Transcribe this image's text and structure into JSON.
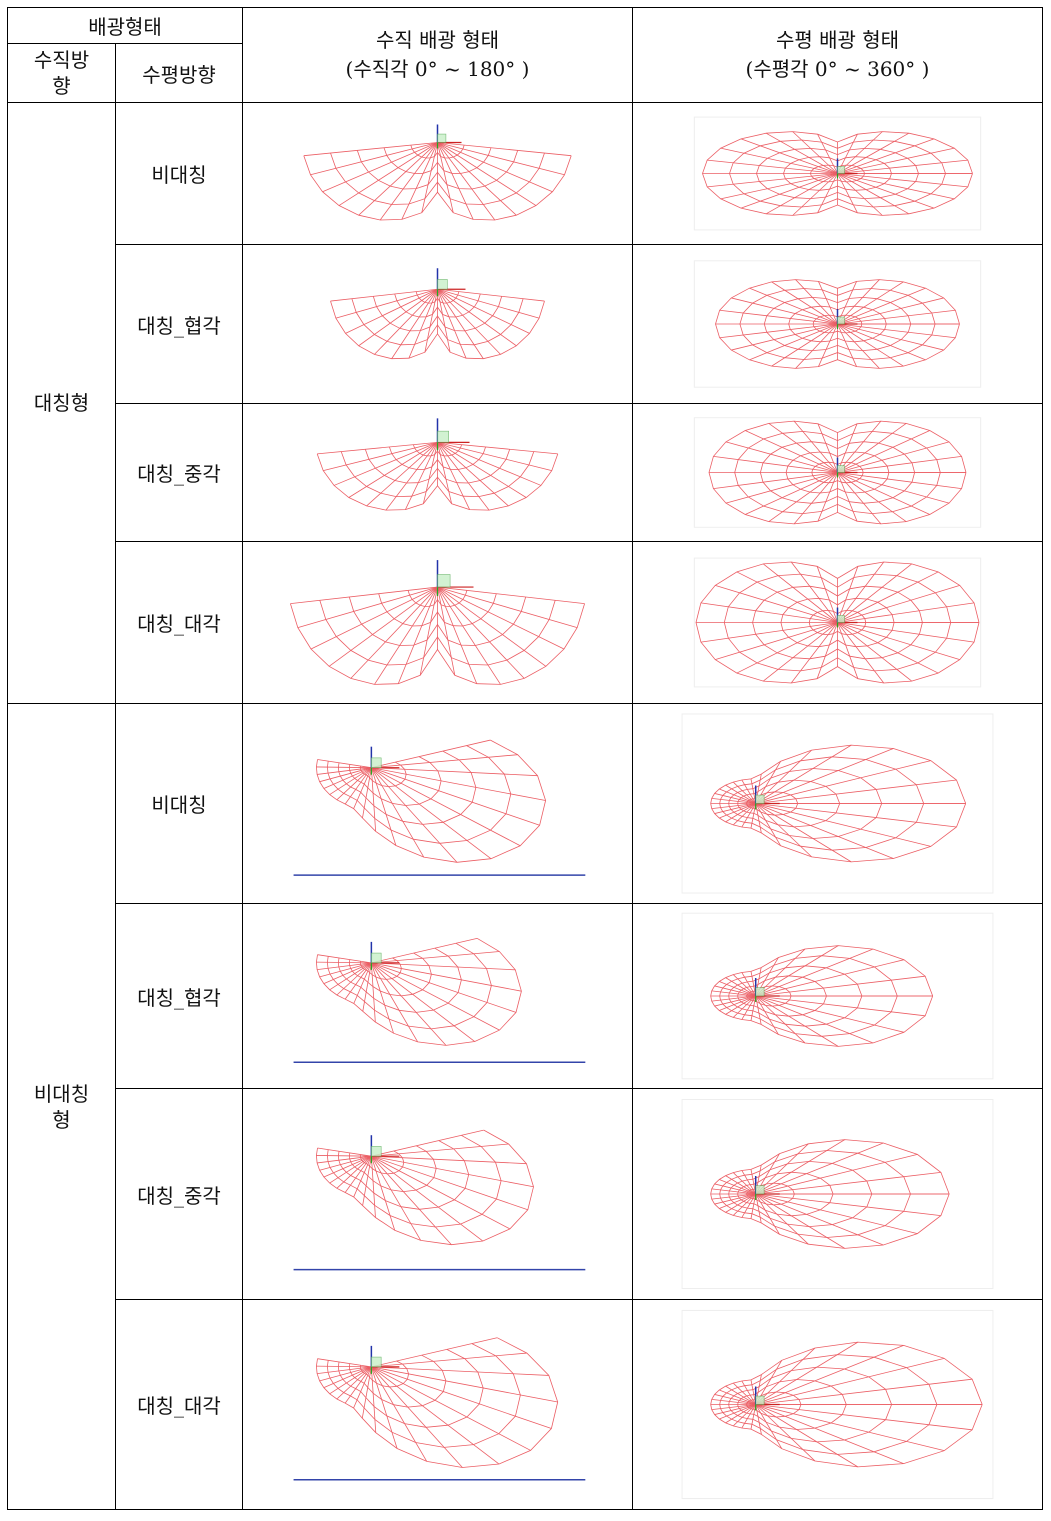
{
  "header": {
    "group": "배광형태",
    "vertical_dir": "수직방향",
    "horizontal_dir": "수평방향",
    "vertical_shape": "수직 배광 형태",
    "vertical_range": "(수직각 0° ~ 180° )",
    "horizontal_shape": "수평 배광 형태",
    "horizontal_range": "(수평각 0° ~ 360° )"
  },
  "groups": [
    {
      "label": "대칭형",
      "rows": [
        "비대칭",
        "대칭_협각",
        "대칭_중각",
        "대칭_대각"
      ]
    },
    {
      "label": "비대칭형",
      "rows": [
        "비대칭",
        "대칭_협각",
        "대칭_중각",
        "대칭_대각"
      ]
    }
  ]
}
